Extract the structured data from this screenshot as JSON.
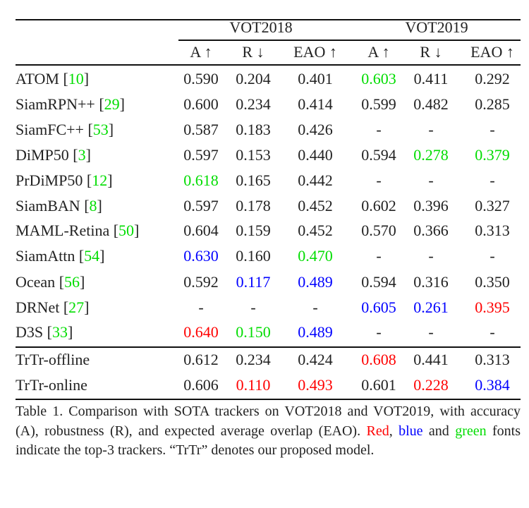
{
  "colors": {
    "red": "#ff0000",
    "blue": "#0000ff",
    "green": "#00dd00",
    "default": "#222222"
  },
  "groups": [
    "VOT2018",
    "VOT2019"
  ],
  "columns": [
    "A ↑",
    "R ↓",
    "EAO ↑",
    "A ↑",
    "R ↓",
    "EAO ↑"
  ],
  "rows": [
    {
      "name": "ATOM ",
      "cite": "10",
      "values": [
        "0.590",
        "0.204",
        "0.401",
        "0.603",
        "0.411",
        "0.292"
      ],
      "colors": [
        "",
        "",
        "",
        "green",
        "",
        ""
      ]
    },
    {
      "name": "SiamRPN++ ",
      "cite": "29",
      "values": [
        "0.600",
        "0.234",
        "0.414",
        "0.599",
        "0.482",
        "0.285"
      ],
      "colors": [
        "",
        "",
        "",
        "",
        "",
        ""
      ]
    },
    {
      "name": "SiamFC++ ",
      "cite": "53",
      "values": [
        "0.587",
        "0.183",
        "0.426",
        "-",
        "-",
        "-"
      ],
      "colors": [
        "",
        "",
        "",
        "",
        "",
        ""
      ]
    },
    {
      "name": "DiMP50 ",
      "cite": "3",
      "values": [
        "0.597",
        "0.153",
        "0.440",
        "0.594",
        "0.278",
        "0.379"
      ],
      "colors": [
        "",
        "",
        "",
        "",
        "green",
        "green"
      ]
    },
    {
      "name": "PrDiMP50 ",
      "cite": "12",
      "values": [
        "0.618",
        "0.165",
        "0.442",
        "-",
        "-",
        "-"
      ],
      "colors": [
        "green",
        "",
        "",
        "",
        "",
        ""
      ]
    },
    {
      "name": "SiamBAN ",
      "cite": "8",
      "values": [
        "0.597",
        "0.178",
        "0.452",
        "0.602",
        "0.396",
        "0.327"
      ],
      "colors": [
        "",
        "",
        "",
        "",
        "",
        ""
      ]
    },
    {
      "name": "MAML-Retina ",
      "cite": "50",
      "values": [
        "0.604",
        "0.159",
        "0.452",
        "0.570",
        "0.366",
        "0.313"
      ],
      "colors": [
        "",
        "",
        "",
        "",
        "",
        ""
      ]
    },
    {
      "name": "SiamAttn ",
      "cite": "54",
      "values": [
        "0.630",
        "0.160",
        "0.470",
        "-",
        "-",
        "-"
      ],
      "colors": [
        "blue",
        "",
        "green",
        "",
        "",
        ""
      ]
    },
    {
      "name": "Ocean ",
      "cite": "56",
      "values": [
        "0.592",
        "0.117",
        "0.489",
        "0.594",
        "0.316",
        "0.350"
      ],
      "colors": [
        "",
        "blue",
        "blue",
        "",
        "",
        ""
      ]
    },
    {
      "name": "DRNet ",
      "cite": "27",
      "values": [
        "-",
        "-",
        "-",
        "0.605",
        "0.261",
        "0.395"
      ],
      "colors": [
        "",
        "",
        "",
        "blue",
        "blue",
        "red"
      ]
    },
    {
      "name": "D3S ",
      "cite": "33",
      "values": [
        "0.640",
        "0.150",
        "0.489",
        "-",
        "-",
        "-"
      ],
      "colors": [
        "red",
        "green",
        "blue",
        "",
        "",
        ""
      ]
    },
    {
      "name": "TrTr-offline",
      "cite": "",
      "values": [
        "0.612",
        "0.234",
        "0.424",
        "0.608",
        "0.441",
        "0.313"
      ],
      "colors": [
        "",
        "",
        "",
        "red",
        "",
        ""
      ]
    },
    {
      "name": "TrTr-online",
      "cite": "",
      "values": [
        "0.606",
        "0.110",
        "0.493",
        "0.601",
        "0.228",
        "0.384"
      ],
      "colors": [
        "",
        "red",
        "red",
        "",
        "red",
        "blue"
      ]
    }
  ],
  "caption": {
    "p1": "Table 1. Comparison with SOTA trackers on VOT2018 and VOT2019, with accuracy (A), robustness (R), and expected average overlap (EAO). ",
    "red": "Red",
    "p2": ", ",
    "blue": "blue",
    "p3": " and ",
    "green": "green",
    "p4": " fonts indicate the top-3 trackers. “TrTr” denotes our proposed model."
  }
}
